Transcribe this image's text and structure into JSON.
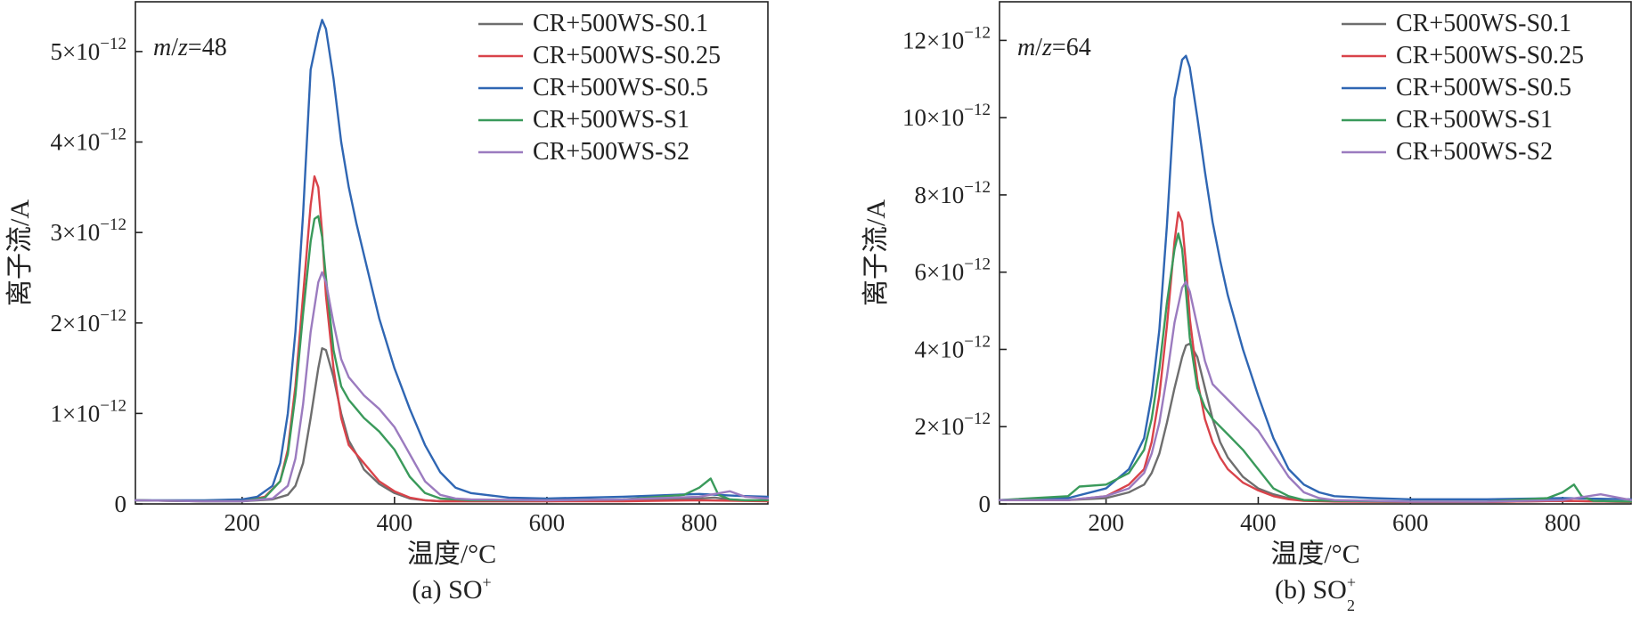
{
  "chart_data": [
    {
      "type": "line",
      "panel_label": "(a) SO",
      "panel_superscript": "+",
      "panel_subscript": "",
      "annotation": "m/z=48",
      "xlabel": "温度/°C",
      "ylabel": "离子流/A",
      "xlim": [
        60,
        890
      ],
      "ylim": [
        0,
        5.55e-12
      ],
      "xticks": [
        200,
        400,
        600,
        800
      ],
      "xtick_labels": [
        "200",
        "400",
        "600",
        "800"
      ],
      "yticks": [
        0,
        1e-12,
        2e-12,
        3e-12,
        4e-12,
        5e-12
      ],
      "ytick_labels": [
        {
          "base": "0",
          "exp": ""
        },
        {
          "base": "1×10",
          "exp": "−12"
        },
        {
          "base": "2×10",
          "exp": "−12"
        },
        {
          "base": "3×10",
          "exp": "−12"
        },
        {
          "base": "4×10",
          "exp": "−12"
        },
        {
          "base": "5×10",
          "exp": "−12"
        }
      ],
      "legend_position": "top-right",
      "series": [
        {
          "name": "CR+500WS-S0.1",
          "color": "#6e6e6e",
          "x": [
            60,
            150,
            200,
            240,
            260,
            270,
            280,
            290,
            300,
            305,
            310,
            320,
            330,
            340,
            350,
            360,
            380,
            400,
            420,
            440,
            460,
            500,
            600,
            700,
            800,
            820,
            840,
            860,
            890
          ],
          "y": [
            4e-14,
            3e-14,
            3e-14,
            5e-14,
            1e-13,
            2e-13,
            4.5e-13,
            9.5e-13,
            1.5e-12,
            1.72e-12,
            1.7e-12,
            1.4e-12,
            1e-12,
            7e-13,
            5.5e-13,
            3.8e-13,
            2.2e-13,
            1.2e-13,
            6e-14,
            4e-14,
            3e-14,
            3e-14,
            3e-14,
            4e-14,
            6e-14,
            7e-14,
            5e-14,
            4e-14,
            4e-14
          ]
        },
        {
          "name": "CR+500WS-S0.25",
          "color": "#d9434a",
          "x": [
            60,
            150,
            200,
            230,
            250,
            260,
            270,
            280,
            290,
            295,
            300,
            305,
            310,
            320,
            330,
            340,
            360,
            380,
            400,
            420,
            440,
            460,
            500,
            600,
            700,
            800,
            890
          ],
          "y": [
            4e-14,
            3e-14,
            3e-14,
            8e-14,
            2.5e-13,
            6e-13,
            1.3e-12,
            2.3e-12,
            3.3e-12,
            3.62e-12,
            3.5e-12,
            3e-12,
            2.3e-12,
            1.5e-12,
            9.5e-13,
            6.5e-13,
            4.5e-13,
            2.5e-13,
            1.4e-13,
            7e-14,
            4e-14,
            3e-14,
            3e-14,
            3e-14,
            3e-14,
            4e-14,
            3e-14
          ]
        },
        {
          "name": "CR+500WS-S0.5",
          "color": "#2f66b3",
          "x": [
            60,
            150,
            200,
            220,
            240,
            250,
            260,
            270,
            280,
            290,
            300,
            305,
            310,
            320,
            330,
            340,
            350,
            360,
            380,
            400,
            420,
            440,
            460,
            480,
            500,
            550,
            600,
            700,
            800,
            850,
            890
          ],
          "y": [
            4e-14,
            4e-14,
            5e-14,
            8e-14,
            2e-13,
            4.5e-13,
            1e-12,
            1.9e-12,
            3.2e-12,
            4.8e-12,
            5.2e-12,
            5.35e-12,
            5.25e-12,
            4.7e-12,
            4e-12,
            3.5e-12,
            3.1e-12,
            2.75e-12,
            2.05e-12,
            1.5e-12,
            1.05e-12,
            6.5e-13,
            3.5e-13,
            1.8e-13,
            1.2e-13,
            7e-14,
            6e-14,
            8e-14,
            1.1e-13,
            9e-14,
            8e-14
          ]
        },
        {
          "name": "CR+500WS-S1",
          "color": "#3a9a5b",
          "x": [
            60,
            150,
            200,
            230,
            250,
            260,
            270,
            280,
            290,
            295,
            300,
            305,
            310,
            320,
            330,
            340,
            350,
            360,
            380,
            400,
            420,
            440,
            460,
            500,
            600,
            700,
            780,
            800,
            815,
            825,
            840,
            860,
            890
          ],
          "y": [
            4e-14,
            3e-14,
            3e-14,
            7e-14,
            2.5e-13,
            5.5e-13,
            1.2e-12,
            2.1e-12,
            2.9e-12,
            3.15e-12,
            3.18e-12,
            2.95e-12,
            2.5e-12,
            1.7e-12,
            1.3e-12,
            1.15e-12,
            1.05e-12,
            9.5e-13,
            8e-13,
            6e-13,
            3e-13,
            1.2e-13,
            6e-14,
            4e-14,
            4e-14,
            5e-14,
            1e-13,
            1.8e-13,
            2.8e-13,
            1e-13,
            5e-14,
            4e-14,
            4e-14
          ]
        },
        {
          "name": "CR+500WS-S2",
          "color": "#9b7bbf",
          "x": [
            60,
            150,
            200,
            240,
            260,
            270,
            280,
            290,
            300,
            305,
            310,
            320,
            330,
            340,
            350,
            360,
            380,
            400,
            420,
            440,
            460,
            480,
            500,
            600,
            700,
            800,
            840,
            860,
            890
          ],
          "y": [
            4e-14,
            3e-14,
            3e-14,
            6e-14,
            2e-13,
            5e-13,
            1.1e-12,
            1.9e-12,
            2.45e-12,
            2.56e-12,
            2.45e-12,
            2e-12,
            1.6e-12,
            1.4e-12,
            1.3e-12,
            1.2e-12,
            1.05e-12,
            8.5e-13,
            5.5e-13,
            2.5e-13,
            1e-13,
            6e-14,
            5e-14,
            4e-14,
            5e-14,
            8e-14,
            1.4e-13,
            8e-14,
            6e-14
          ]
        }
      ]
    },
    {
      "type": "line",
      "panel_label": "(b) SO",
      "panel_superscript": "+",
      "panel_subscript": "2",
      "annotation": "m/z=64",
      "xlabel": "温度/°C",
      "ylabel": "离子流/A",
      "xlim": [
        60,
        890
      ],
      "ylim": [
        0,
        1.3e-11
      ],
      "xticks": [
        200,
        400,
        600,
        800
      ],
      "xtick_labels": [
        "200",
        "400",
        "600",
        "800"
      ],
      "yticks": [
        0,
        2e-12,
        4e-12,
        6e-12,
        8e-12,
        1e-11,
        1.2e-11
      ],
      "ytick_labels": [
        {
          "base": "0",
          "exp": ""
        },
        {
          "base": "2×10",
          "exp": "−12"
        },
        {
          "base": "4×10",
          "exp": "−12"
        },
        {
          "base": "6×10",
          "exp": "−12"
        },
        {
          "base": "8×10",
          "exp": "−12"
        },
        {
          "base": "10×10",
          "exp": "−12"
        },
        {
          "base": "12×10",
          "exp": "−12"
        }
      ],
      "legend_position": "top-right",
      "series": [
        {
          "name": "CR+500WS-S0.1",
          "color": "#6e6e6e",
          "x": [
            60,
            150,
            200,
            230,
            250,
            260,
            270,
            280,
            290,
            300,
            305,
            310,
            320,
            330,
            340,
            350,
            360,
            380,
            400,
            420,
            440,
            460,
            500,
            600,
            700,
            800,
            890
          ],
          "y": [
            1e-13,
            1e-13,
            1.5e-13,
            3e-13,
            5e-13,
            8e-13,
            1.3e-12,
            2.1e-12,
            3e-12,
            3.8e-12,
            4.1e-12,
            4.15e-12,
            3.8e-12,
            3e-12,
            2.2e-12,
            1.6e-12,
            1.2e-12,
            7e-13,
            4e-13,
            2.5e-13,
            1.5e-13,
            1e-13,
            8e-14,
            5e-14,
            5e-14,
            8e-14,
            5e-14
          ]
        },
        {
          "name": "CR+500WS-S0.25",
          "color": "#d9434a",
          "x": [
            60,
            150,
            200,
            230,
            250,
            260,
            270,
            280,
            290,
            295,
            300,
            305,
            310,
            320,
            330,
            340,
            350,
            360,
            380,
            400,
            420,
            440,
            460,
            500,
            600,
            700,
            800,
            890
          ],
          "y": [
            1e-13,
            1e-13,
            2e-13,
            5e-13,
            9e-13,
            1.6e-12,
            2.8e-12,
            4.6e-12,
            6.8e-12,
            7.55e-12,
            7.3e-12,
            6.2e-12,
            4.8e-12,
            3.2e-12,
            2.2e-12,
            1.6e-12,
            1.2e-12,
            9e-13,
            5.5e-13,
            3.5e-13,
            2e-13,
            1.2e-13,
            8e-14,
            6e-14,
            5e-14,
            5e-14,
            8e-14,
            5e-14
          ]
        },
        {
          "name": "CR+500WS-S0.5",
          "color": "#2f66b3",
          "x": [
            60,
            150,
            200,
            230,
            250,
            260,
            270,
            280,
            290,
            300,
            305,
            310,
            320,
            330,
            340,
            350,
            360,
            380,
            400,
            420,
            440,
            460,
            480,
            500,
            550,
            600,
            700,
            800,
            890
          ],
          "y": [
            1e-13,
            1.5e-13,
            4e-13,
            9e-13,
            1.7e-12,
            2.8e-12,
            4.5e-12,
            7.2e-12,
            1.05e-11,
            1.15e-11,
            1.16e-11,
            1.13e-11,
            1e-11,
            8.6e-12,
            7.3e-12,
            6.3e-12,
            5.4e-12,
            4e-12,
            2.8e-12,
            1.7e-12,
            9e-13,
            5e-13,
            3e-13,
            2e-13,
            1.5e-13,
            1.2e-13,
            1.2e-13,
            1.5e-13,
            1.2e-13
          ]
        },
        {
          "name": "CR+500WS-S1",
          "color": "#3a9a5b",
          "x": [
            60,
            150,
            165,
            200,
            230,
            250,
            260,
            270,
            280,
            290,
            295,
            300,
            305,
            310,
            320,
            330,
            340,
            350,
            360,
            380,
            400,
            420,
            440,
            460,
            500,
            600,
            700,
            780,
            800,
            815,
            825,
            840,
            890
          ],
          "y": [
            1e-13,
            2e-13,
            4.5e-13,
            5e-13,
            8e-13,
            1.4e-12,
            2.2e-12,
            3.5e-12,
            5.2e-12,
            6.6e-12,
            7e-12,
            6.6e-12,
            5.5e-12,
            4.3e-12,
            3e-12,
            2.5e-12,
            2.2e-12,
            2e-12,
            1.8e-12,
            1.4e-12,
            9e-13,
            4e-13,
            2e-13,
            1e-13,
            8e-14,
            6e-14,
            6e-14,
            1.5e-13,
            3e-13,
            5e-13,
            2e-13,
            8e-14,
            6e-14
          ]
        },
        {
          "name": "CR+500WS-S2",
          "color": "#9b7bbf",
          "x": [
            60,
            150,
            200,
            230,
            250,
            260,
            270,
            280,
            290,
            300,
            305,
            310,
            320,
            330,
            340,
            350,
            360,
            380,
            400,
            420,
            440,
            460,
            480,
            500,
            600,
            700,
            800,
            850,
            890
          ],
          "y": [
            1e-13,
            1e-13,
            2e-13,
            4e-13,
            8e-13,
            1.3e-12,
            2.1e-12,
            3.3e-12,
            4.7e-12,
            5.6e-12,
            5.75e-12,
            5.5e-12,
            4.6e-12,
            3.7e-12,
            3.1e-12,
            2.9e-12,
            2.7e-12,
            2.3e-12,
            1.9e-12,
            1.3e-12,
            7e-13,
            3e-13,
            1.5e-13,
            1e-13,
            6e-14,
            6e-14,
            1e-13,
            2.5e-13,
            1e-13
          ]
        }
      ]
    }
  ]
}
